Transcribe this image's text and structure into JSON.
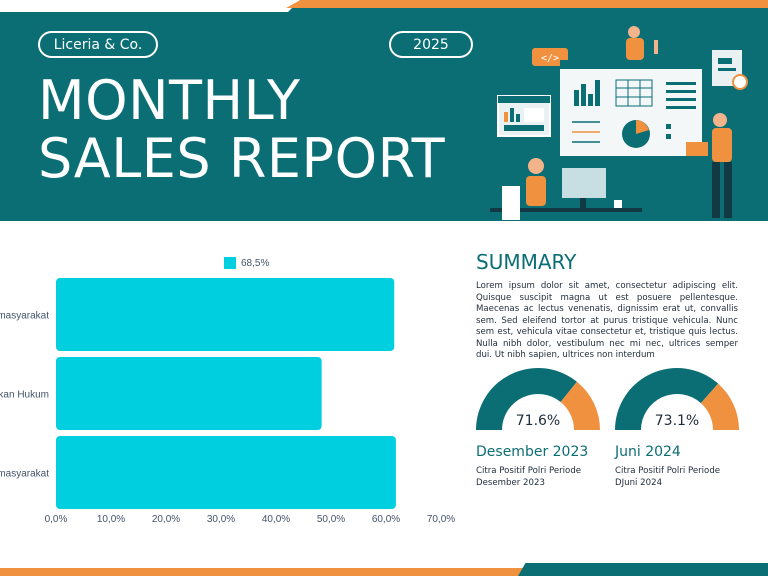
{
  "header": {
    "company": "Liceria & Co.",
    "year": "2025",
    "title_line1": "MONTHLY",
    "title_line2": "SALES REPORT"
  },
  "colors": {
    "teal": "#0b6e74",
    "orange": "#f0913f",
    "bar": "#00cfe0",
    "white": "#ffffff"
  },
  "chart_data": {
    "type": "bar",
    "orientation": "horizontal",
    "categories": [
      "masyarakat",
      "kan Hukum",
      "masyarakat"
    ],
    "series": [
      {
        "name": "68,5%",
        "values": [
          61.5,
          48.3,
          61.8
        ]
      }
    ],
    "xlim": [
      0,
      70
    ],
    "xticks": [
      "0,0%",
      "10,0%",
      "20,0%",
      "30,0%",
      "40,0%",
      "50,0%",
      "60,0%",
      "70,0%"
    ],
    "legend_position": "top",
    "grid": false
  },
  "summary": {
    "title": "SUMMARY",
    "body": "Lorem ipsum dolor sit amet, consectetur adipiscing elit. Quisque suscipit magna ut est posuere pellentesque. Maecenas ac lectus venenatis, dignissim erat ut, convallis sem. Sed eleifend tortor at purus tristique vehicula. Nunc sem est, vehicula vitae consectetur et, tristique quis lectus. Nulla nibh dolor, vestibulum nec mi nec, ultrices semper dui. Ut nibh sapien, ultrices non interdum"
  },
  "gauges": [
    {
      "value_text": "71.6%",
      "value": 71.6,
      "period": "Desember 2023",
      "desc_line1": "Citra Positif Polri Periode",
      "desc_line2": "Desember 2023"
    },
    {
      "value_text": "73.1%",
      "value": 73.1,
      "period": "Juni 2024",
      "desc_line1": "Citra Positif Polri Periode",
      "desc_line2": "DJuni 2024"
    }
  ]
}
